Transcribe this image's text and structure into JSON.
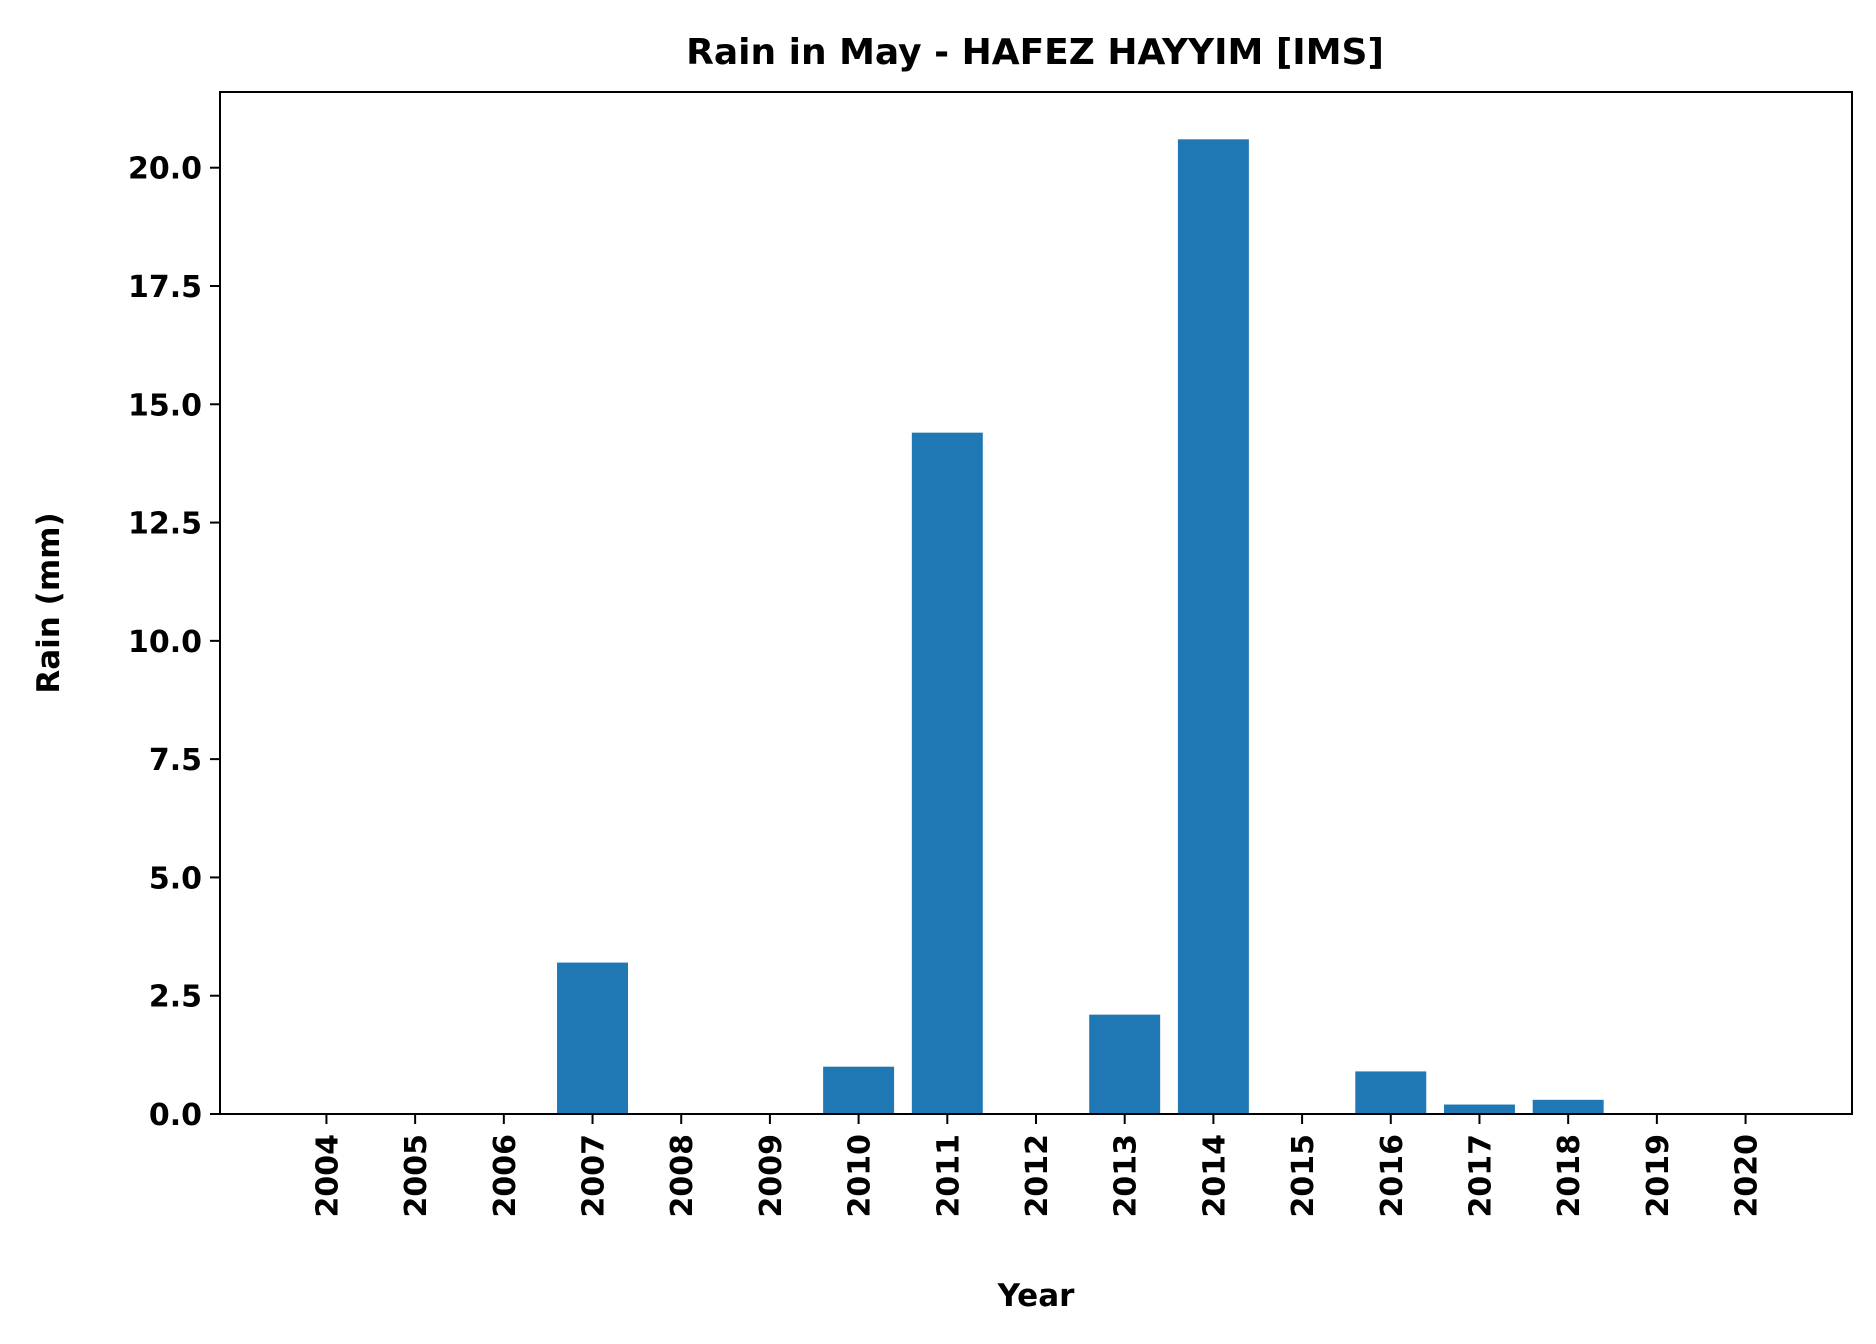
{
  "chart_data": {
    "type": "bar",
    "title": "Rain in May - HAFEZ HAYYIM [IMS]",
    "xlabel": "Year",
    "ylabel": "Rain (mm)",
    "categories": [
      "2004",
      "2005",
      "2006",
      "2007",
      "2008",
      "2009",
      "2010",
      "2011",
      "2012",
      "2013",
      "2014",
      "2015",
      "2016",
      "2017",
      "2018",
      "2019",
      "2020"
    ],
    "values": [
      0,
      0,
      0,
      3.2,
      0,
      0,
      1.0,
      14.4,
      0,
      2.1,
      20.6,
      0,
      0.9,
      0.2,
      0.3,
      0,
      0
    ],
    "ylim": [
      0,
      21.6
    ],
    "yticks": [
      0.0,
      2.5,
      5.0,
      7.5,
      10.0,
      12.5,
      15.0,
      17.5,
      20.0
    ],
    "ytick_labels": [
      "0.0",
      "2.5",
      "5.0",
      "7.5",
      "10.0",
      "12.5",
      "15.0",
      "17.5",
      "20.0"
    ],
    "grid": false,
    "bar_color": "#1f77b4"
  }
}
